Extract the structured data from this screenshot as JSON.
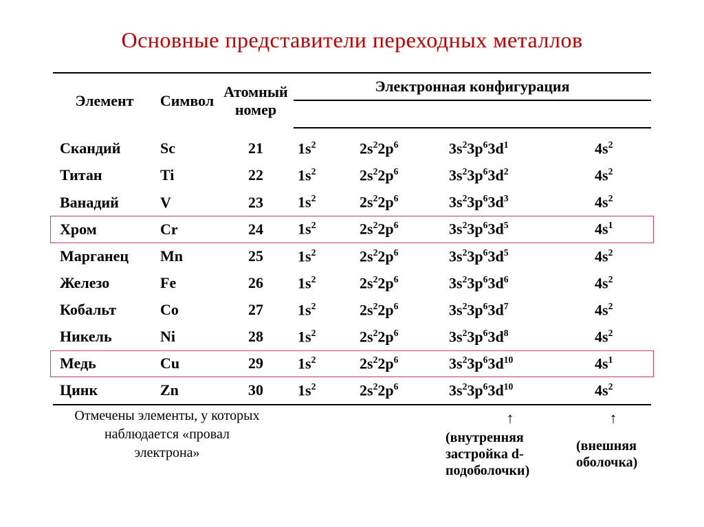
{
  "title": "Основные представители переходных металлов",
  "headers": {
    "element": "Элемент",
    "symbol": "Символ",
    "atomic_number_l1": "Атомный",
    "atomic_number_l2": "номер",
    "econf": "Электронная конфигурация"
  },
  "rows": [
    {
      "name": "Скандий",
      "sym": "Sc",
      "num": "21",
      "s1": "1s|2",
      "s2": "2s|2|2p|6",
      "s3": "3s|2|3p|6|3d|1",
      "s4": "4s|2",
      "hl": false
    },
    {
      "name": "Титан",
      "sym": "Ti",
      "num": "22",
      "s1": "1s|2",
      "s2": "2s|2|2p|6",
      "s3": "3s|2|3p|6|3d|2",
      "s4": "4s|2",
      "hl": false
    },
    {
      "name": "Ванадий",
      "sym": "V",
      "num": "23",
      "s1": "1s|2",
      "s2": "2s|2|2p|6",
      "s3": "3s|2|3p|6|3d|3",
      "s4": "4s|2",
      "hl": false
    },
    {
      "name": "Хром",
      "sym": "Cr",
      "num": "24",
      "s1": "1s|2",
      "s2": "2s|2|2p|6",
      "s3": "3s|2|3p|6|3d|5",
      "s4": "4s|1",
      "hl": true
    },
    {
      "name": "Марганец",
      "sym": "Mn",
      "num": "25",
      "s1": "1s|2",
      "s2": "2s|2|2p|6",
      "s3": "3s|2|3p|6|3d|5",
      "s4": "4s|2",
      "hl": false
    },
    {
      "name": "Железо",
      "sym": "Fe",
      "num": "26",
      "s1": "1s|2",
      "s2": "2s|2|2p|6",
      "s3": "3s|2|3p|6|3d|6",
      "s4": "4s|2",
      "hl": false
    },
    {
      "name": "Кобальт",
      "sym": "Co",
      "num": "27",
      "s1": "1s|2",
      "s2": "2s|2|2p|6",
      "s3": "3s|2|3p|6|3d|7",
      "s4": "4s|2",
      "hl": false
    },
    {
      "name": "Никель",
      "sym": "Ni",
      "num": "28",
      "s1": "1s|2",
      "s2": "2s|2|2p|6",
      "s3": "3s|2|3p|6|3d|8",
      "s4": "4s|2",
      "hl": false
    },
    {
      "name": "Медь",
      "sym": "Cu",
      "num": "29",
      "s1": "1s|2",
      "s2": "2s|2|2p|6",
      "s3": "3s|2|3p|6|3d|10",
      "s4": "4s|1",
      "hl": true
    },
    {
      "name": "Цинк",
      "sym": "Zn",
      "num": "30",
      "s1": "1s|2",
      "s2": "2s|2|2p|6",
      "s3": "3s|2|3p|6|3d|10",
      "s4": "4s|2",
      "hl": false
    }
  ],
  "arrow": "↑",
  "caption_inner_l1": "(внутренняя",
  "caption_inner_l2": "застройка d-",
  "caption_inner_l3": "подоболочки)",
  "caption_outer_l1": "(внешняя",
  "caption_outer_l2": "оболочка)",
  "footnote_l1": "Отмечены элементы, у которых",
  "footnote_l2": "наблюдается «провал",
  "footnote_l3": "электрона»",
  "style": {
    "title_color": "#c00000",
    "highlight_border": "#c0405c",
    "rule_color": "#000000",
    "font": "Times New Roman",
    "title_fontsize": 32,
    "body_fontsize": 22
  }
}
